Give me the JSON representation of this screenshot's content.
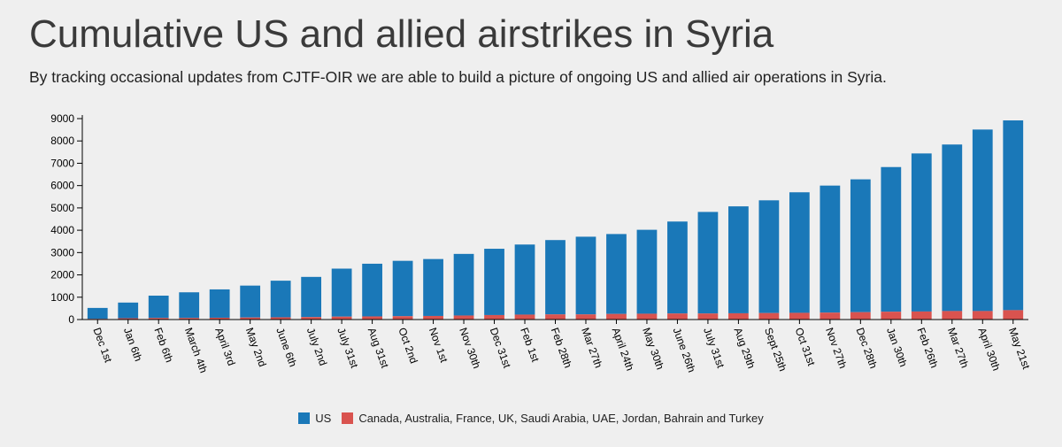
{
  "title": "Cumulative US and allied airstrikes in Syria",
  "subtitle": "By tracking occasional updates from CJTF-OIR we are able to build a picture of ongoing US and allied air operations in Syria.",
  "colors": {
    "us": "#1a78b8",
    "allies": "#d9534f",
    "background": "#efefef"
  },
  "chart_data": {
    "type": "bar",
    "stacked": true,
    "categories": [
      "Dec 1st",
      "Jan 6th",
      "Feb 6th",
      "March 4th",
      "April 3rd",
      "May 2nd",
      "June 6th",
      "July 2nd",
      "July 31st",
      "Aug 31st",
      "Oct 2nd",
      "Nov 1st",
      "Nov 30th",
      "Dec 31st",
      "Feb 1st",
      "Feb 28th",
      "Mar 27th",
      "April 24th",
      "May 30th",
      "June 26th",
      "July 31st",
      "Aug 29th",
      "Sept 25th",
      "Oct 31st",
      "Nov 27th",
      "Dec 28th",
      "Jan 30th",
      "Feb 26th",
      "Mar 27th",
      "April 30th",
      "May 21st"
    ],
    "series": [
      {
        "name": "US",
        "values": [
          490,
          700,
          1000,
          1150,
          1270,
          1430,
          1640,
          1800,
          2150,
          2360,
          2480,
          2550,
          2760,
          2970,
          3140,
          3330,
          3480,
          3580,
          3760,
          4120,
          4550,
          4790,
          5050,
          5400,
          5690,
          5950,
          6480,
          7080,
          7460,
          8130,
          8500
        ]
      },
      {
        "name": "Canada, Australia, France, UK, Saudi Arabia, UAE, Jordan, Bahrain and Turkey",
        "values": [
          30,
          60,
          70,
          70,
          80,
          90,
          100,
          110,
          130,
          140,
          150,
          160,
          180,
          200,
          220,
          230,
          230,
          250,
          260,
          270,
          270,
          280,
          290,
          300,
          310,
          330,
          350,
          360,
          380,
          380,
          420
        ]
      }
    ],
    "ylim": [
      0,
      9000
    ],
    "yticks": [
      0,
      1000,
      2000,
      3000,
      4000,
      5000,
      6000,
      7000,
      8000,
      9000
    ],
    "grid": false,
    "legend_position": "bottom"
  }
}
